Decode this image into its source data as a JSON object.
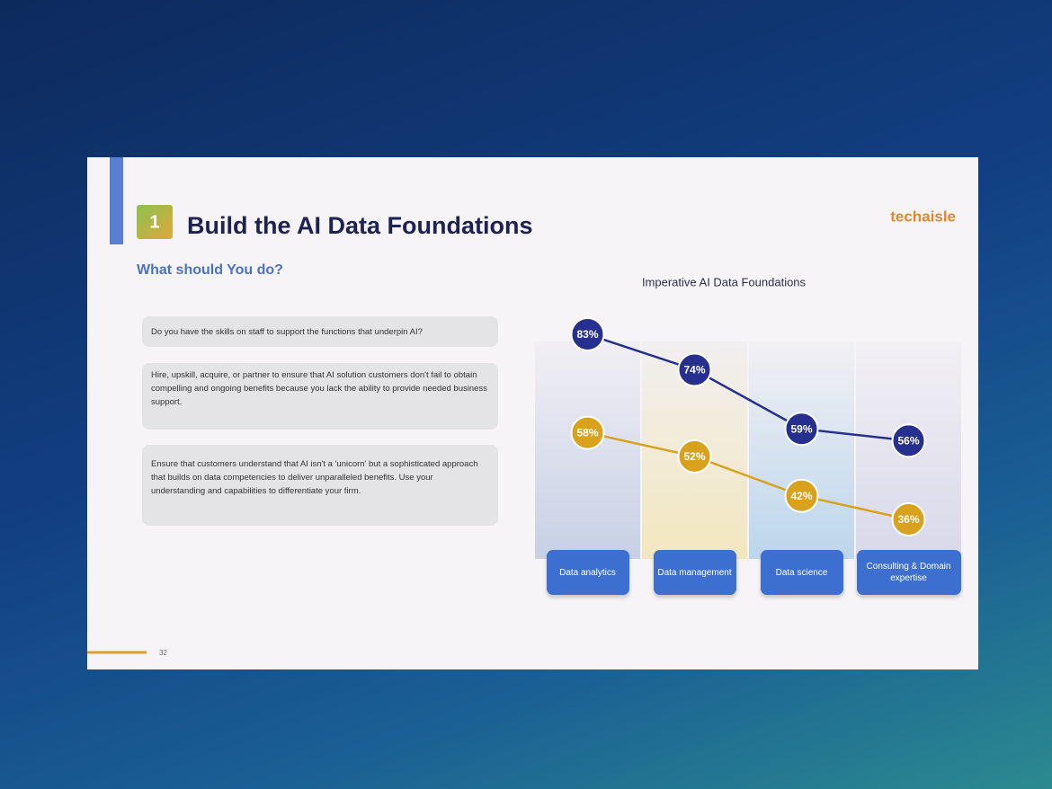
{
  "slide": {
    "number": "1",
    "title": "Build the AI Data Foundations",
    "logo": "techaisle",
    "subtitle": "What should You do?",
    "boxes": [
      "Do you have the skills on staff to support the functions that underpin AI?",
      "Hire, upskill, acquire, or partner to ensure that AI solution customers don't fail to obtain compelling and ongoing benefits because you lack the ability to provide needed business support.",
      "Ensure that customers understand that AI isn't a 'unicorn' but a sophisticated approach that builds on data competencies to deliver unparalleled benefits. Use your understanding and capabilities to differentiate your firm."
    ],
    "page": "32"
  },
  "chart_data": {
    "type": "line",
    "title": "Imperative AI Data Foundations",
    "categories": [
      "Data analytics",
      "Data management",
      "Data science",
      "Consulting & Domain expertise"
    ],
    "series": [
      {
        "color": "#27308f",
        "values": [
          83,
          74,
          59,
          56
        ],
        "value_labels": [
          "83%",
          "74%",
          "59%",
          "56%"
        ]
      },
      {
        "color": "#d9a21e",
        "values": [
          58,
          52,
          42,
          36
        ],
        "value_labels": [
          "58%",
          "52%",
          "42%",
          "36%"
        ]
      }
    ]
  }
}
